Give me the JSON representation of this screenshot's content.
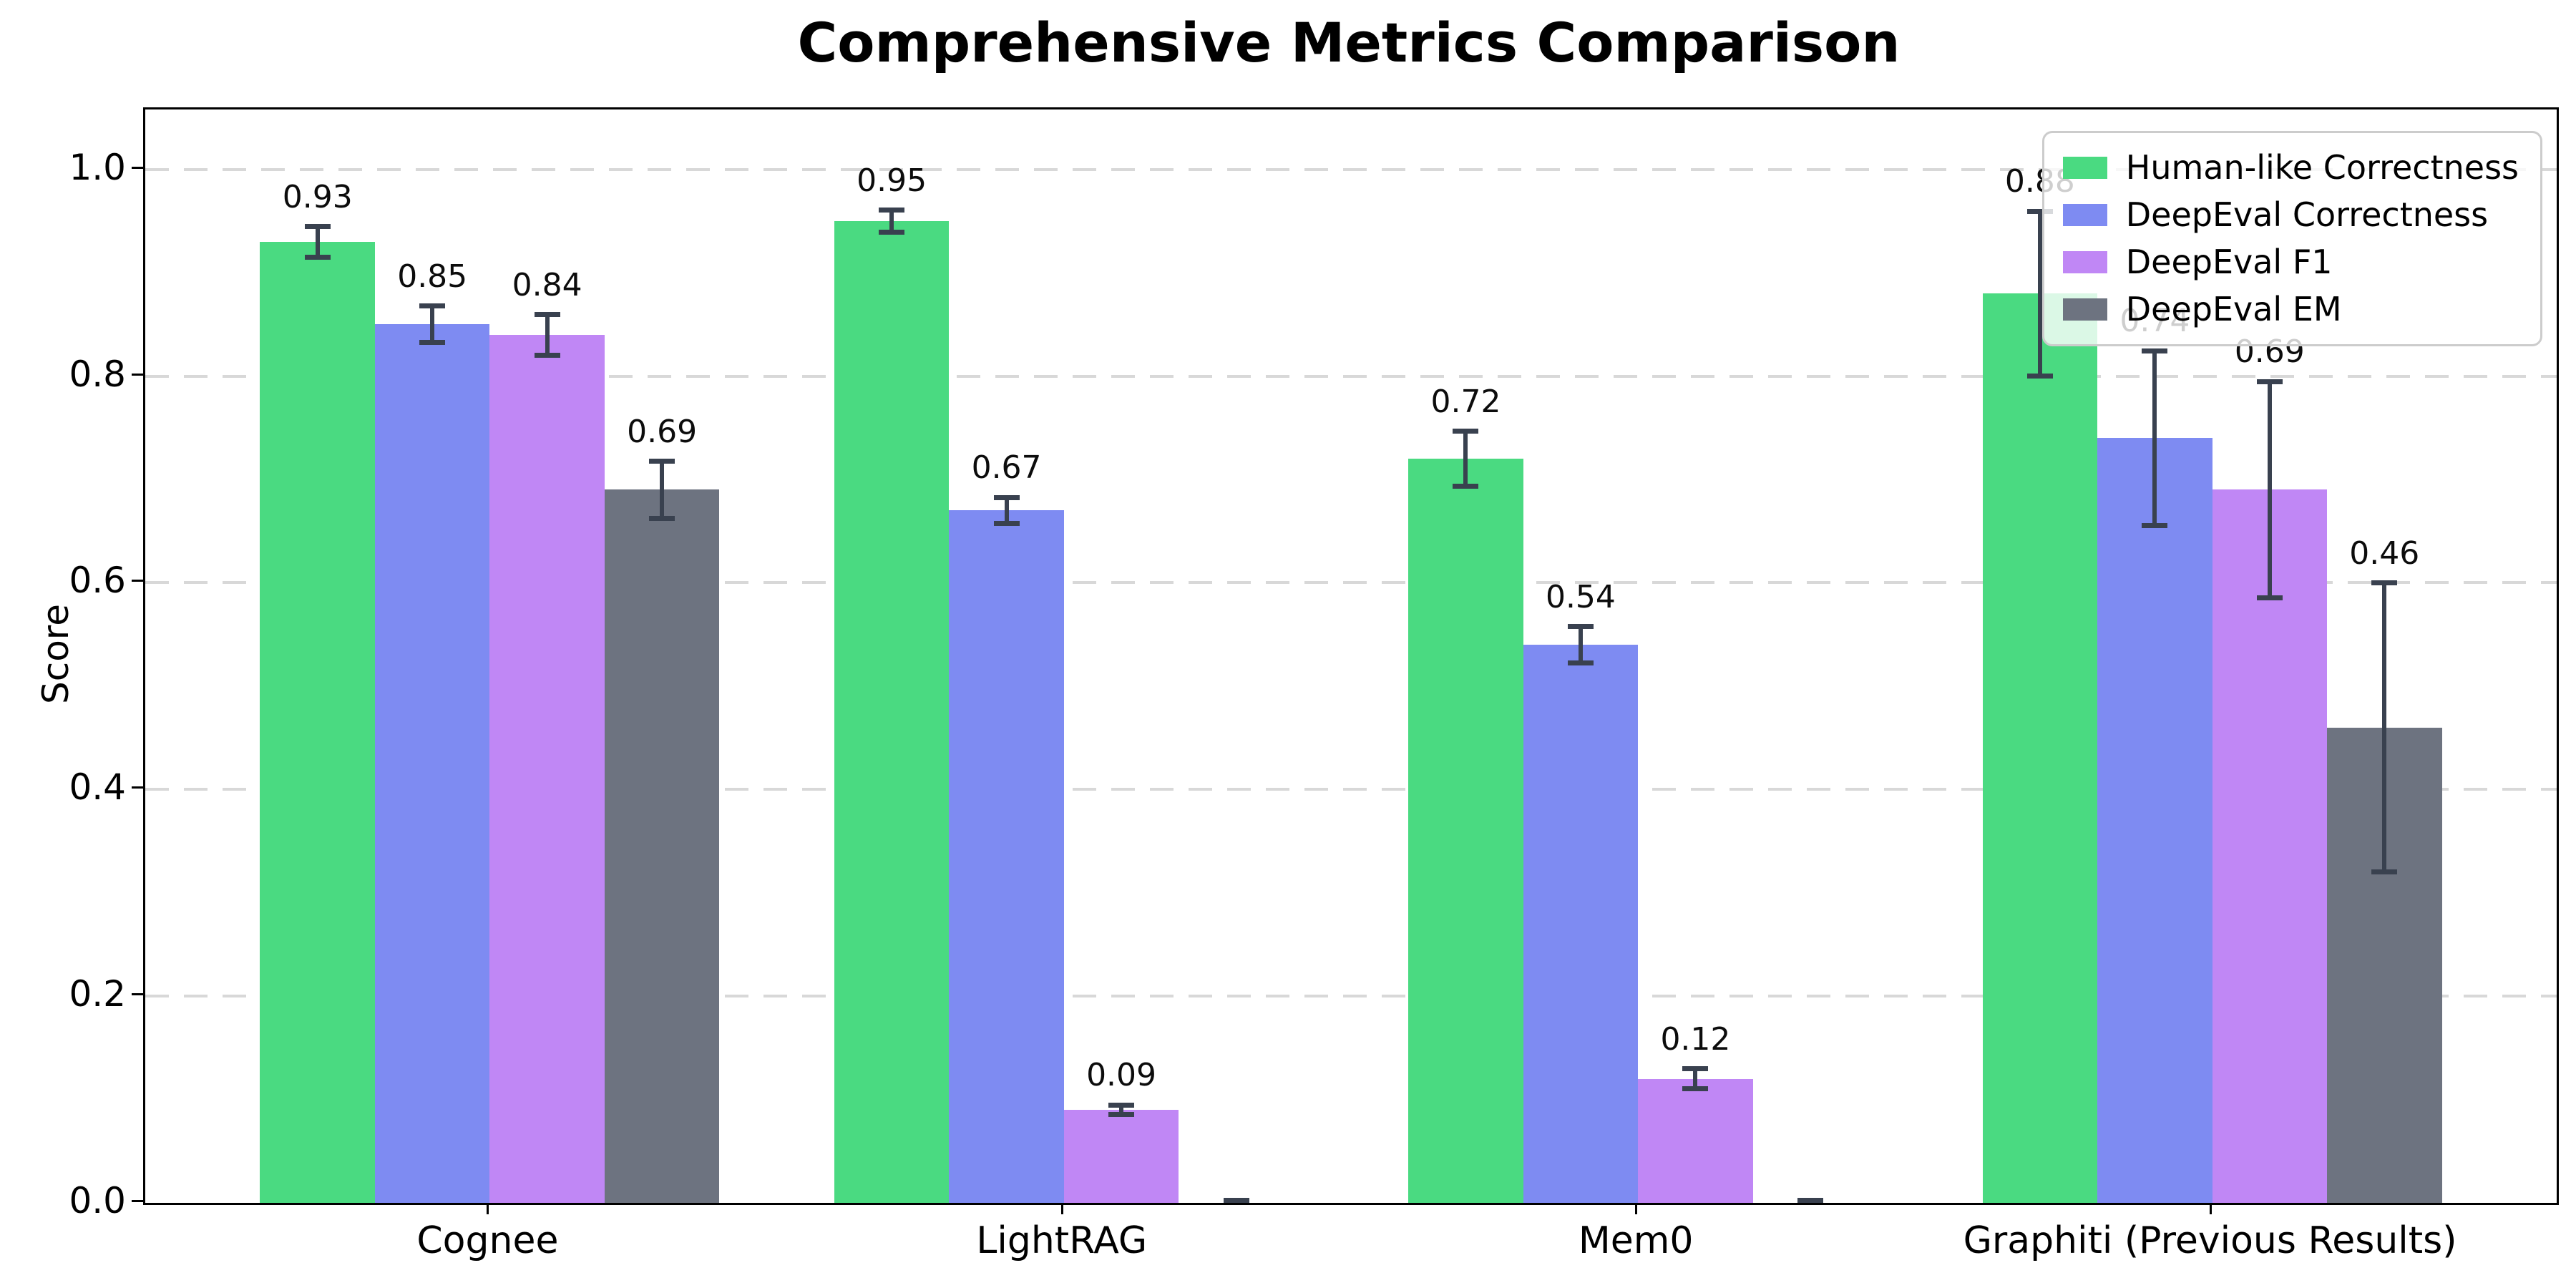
{
  "page": {
    "background": "#ffffff"
  },
  "chart_data": {
    "type": "bar",
    "title": "Comprehensive Metrics Comparison",
    "xlabel": "",
    "ylabel": "Score",
    "categories": [
      "Cognee",
      "LightRAG",
      "Mem0",
      "Graphiti (Previous Results)"
    ],
    "series": [
      {
        "name": "Human-like Correctness",
        "color": "#4ada81",
        "values": [
          0.93,
          0.95,
          0.72,
          0.88
        ],
        "errors": [
          0.015,
          0.011,
          0.027,
          0.08
        ],
        "value_labels": [
          "0.93",
          "0.95",
          "0.72",
          "0.88"
        ]
      },
      {
        "name": "DeepEval Correctness",
        "color": "#7e8bf2",
        "values": [
          0.85,
          0.67,
          0.54,
          0.74
        ],
        "errors": [
          0.018,
          0.013,
          0.018,
          0.085
        ],
        "value_labels": [
          "0.85",
          "0.67",
          "0.54",
          "0.74"
        ]
      },
      {
        "name": "DeepEval F1",
        "color": "#c087f5",
        "values": [
          0.84,
          0.09,
          0.12,
          0.69
        ],
        "errors": [
          0.02,
          0.005,
          0.01,
          0.105
        ],
        "value_labels": [
          "0.84",
          "0.09",
          "0.12",
          "0.69"
        ]
      },
      {
        "name": "DeepEval EM",
        "color": "#6d7380",
        "values": [
          0.69,
          0.0,
          0.0,
          0.46
        ],
        "errors": [
          0.028,
          0.003,
          0.003,
          0.14
        ],
        "value_labels": [
          "0.69",
          null,
          null,
          "0.46"
        ]
      }
    ],
    "yticks": [
      "0.0",
      "0.2",
      "0.4",
      "0.6",
      "0.8",
      "1.0"
    ],
    "ylim": [
      0,
      1.058
    ],
    "bar_width_data_units": 0.2,
    "xlim": [
      -0.6,
      3.6
    ],
    "grid": {
      "axis": "y",
      "style": "dashed",
      "color": "#d8d8d8",
      "visible": true
    },
    "legend": {
      "position": "upper right",
      "background": "rgba(255,255,255,0.8)",
      "border_color": "#cccccc"
    },
    "error_bar_color": "#39414f",
    "axis_color": "#000000",
    "title_color": "#000000"
  }
}
